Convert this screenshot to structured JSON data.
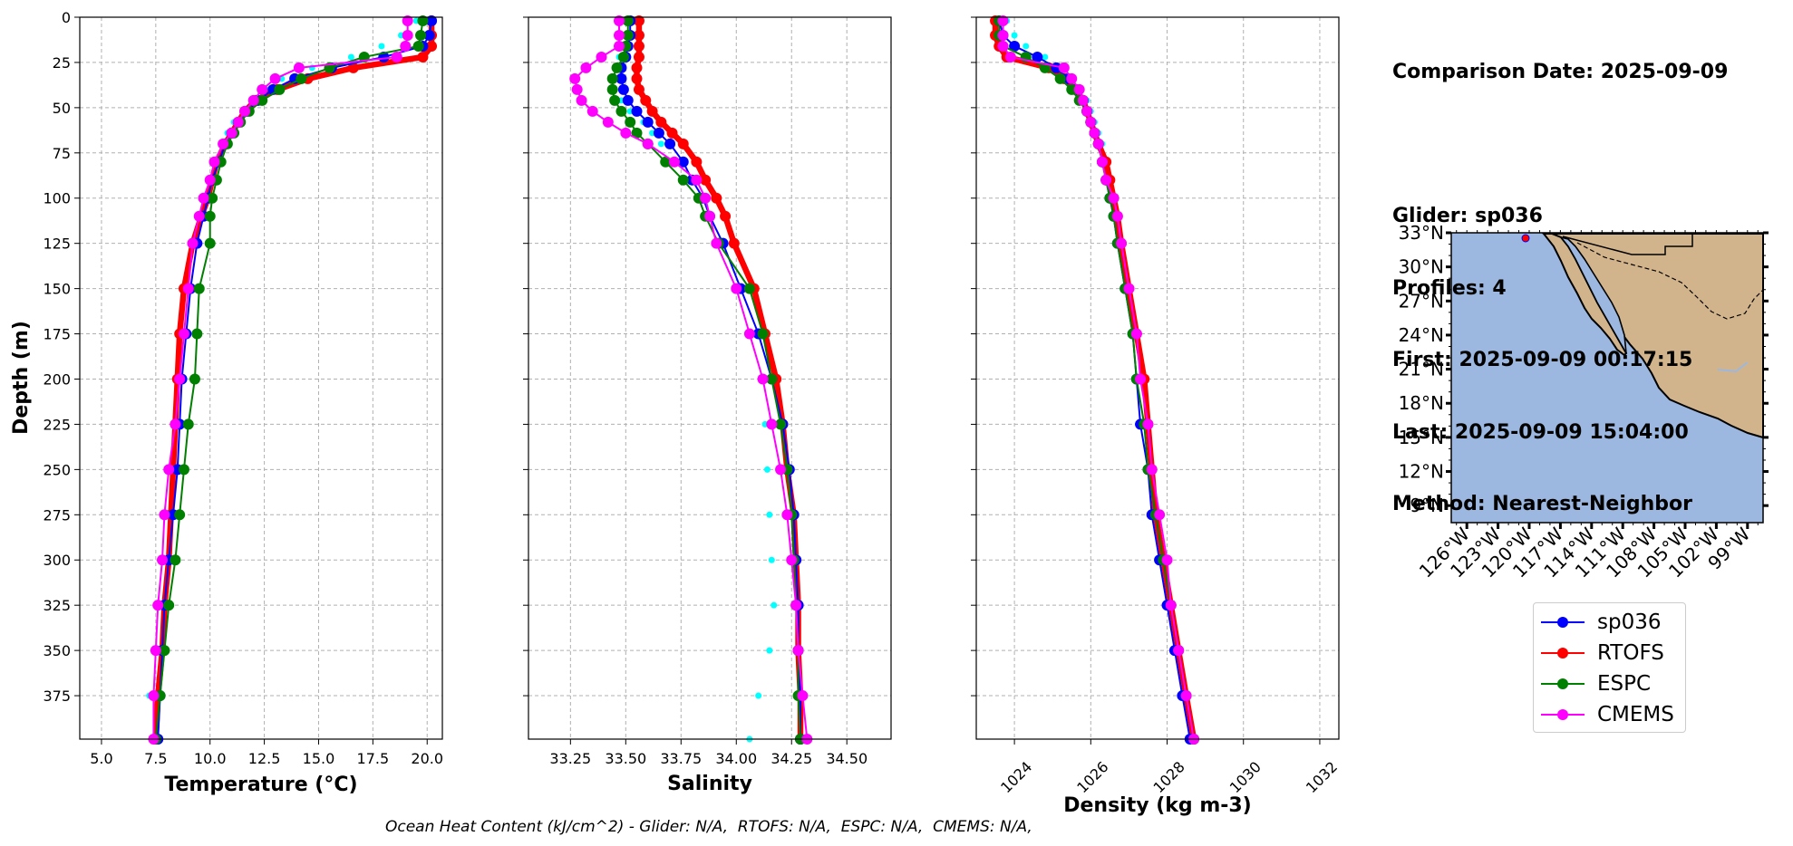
{
  "info": {
    "comparison_date": "Comparison Date: 2025-09-09",
    "glider": "Glider: sp036",
    "profiles": "Profiles: 4",
    "first": "First: 2025-09-09 00:17:15",
    "last": "Last: 2025-09-09 15:04:00",
    "method": "Method: Nearest-Neighbor"
  },
  "footer": "Ocean Heat Content (kJ/cm^2) - Glider: N/A,  RTOFS: N/A,  ESPC: N/A,  CMEMS: N/A,",
  "colors": {
    "sp036": "#0000ff",
    "RTOFS": "#ff0000",
    "ESPC": "#008000",
    "CMEMS": "#ff00ff",
    "raw": "#00ffff",
    "ocean": "#9cb7e0",
    "land": "#d2b48c"
  },
  "legend": [
    "sp036",
    "RTOFS",
    "ESPC",
    "CMEMS"
  ],
  "chart_data": [
    {
      "type": "line",
      "panel": "temperature",
      "xlabel": "Temperature (°C)",
      "ylabel": "Depth (m)",
      "xlim": [
        4,
        20.7
      ],
      "ylim": [
        399,
        0
      ],
      "xticks": [
        "5.0",
        "7.5",
        "10.0",
        "12.5",
        "15.0",
        "17.5",
        "20.0"
      ],
      "yticks": [
        "0",
        "25",
        "50",
        "75",
        "100",
        "125",
        "150",
        "175",
        "200",
        "225",
        "250",
        "275",
        "300",
        "325",
        "350",
        "375"
      ],
      "grid": true,
      "depth": [
        2,
        10,
        16,
        22,
        28,
        34,
        40,
        46,
        52,
        58,
        64,
        70,
        80,
        90,
        100,
        110,
        125,
        150,
        175,
        200,
        225,
        250,
        275,
        300,
        325,
        350,
        375,
        399
      ],
      "series": [
        {
          "name": "sp036",
          "values": [
            20.2,
            20.1,
            19.8,
            18.0,
            15.6,
            13.9,
            12.9,
            12.2,
            11.7,
            11.3,
            11.0,
            10.7,
            10.4,
            10.1,
            9.9,
            9.7,
            9.4,
            9.1,
            8.9,
            8.7,
            8.6,
            8.5,
            8.3,
            8.1,
            7.9,
            7.8,
            7.7,
            7.6
          ]
        },
        {
          "name": "RTOFS",
          "values": [
            20.2,
            20.2,
            20.2,
            19.8,
            16.6,
            14.5,
            13.1,
            12.1,
            11.6,
            11.3,
            11.0,
            10.7,
            10.3,
            10.1,
            9.9,
            9.6,
            9.2,
            8.8,
            8.6,
            8.5,
            8.4,
            8.3,
            8.2,
            8.1,
            7.9,
            7.8,
            7.6,
            7.5
          ]
        },
        {
          "name": "ESPC",
          "values": [
            19.8,
            19.7,
            19.6,
            17.1,
            15.5,
            14.2,
            13.2,
            12.4,
            11.8,
            11.4,
            11.1,
            10.8,
            10.5,
            10.3,
            10.1,
            10.0,
            10.0,
            9.5,
            9.4,
            9.3,
            9.0,
            8.8,
            8.6,
            8.4,
            8.1,
            7.9,
            7.7,
            7.5
          ]
        },
        {
          "name": "CMEMS",
          "values": [
            19.1,
            19.1,
            19.0,
            18.6,
            14.1,
            13.0,
            12.4,
            12.0,
            11.6,
            11.3,
            11.0,
            10.6,
            10.2,
            10.0,
            9.7,
            9.5,
            9.2,
            9.0,
            8.8,
            8.6,
            8.4,
            8.1,
            7.9,
            7.8,
            7.6,
            7.5,
            7.4,
            7.4
          ]
        },
        {
          "name": "glider raw",
          "values": [
            19.5,
            18.8,
            17.9,
            16.5,
            14.7,
            13.3,
            12.6,
            12.0,
            11.6,
            11.1,
            10.8,
            10.6,
            10.4,
            10.0,
            9.7,
            9.5,
            9.3,
            9.1,
            8.9,
            8.7,
            8.5,
            8.4,
            8.2,
            7.9,
            7.7,
            7.4,
            7.2,
            7.3
          ]
        }
      ]
    },
    {
      "type": "line",
      "panel": "salinity",
      "xlabel": "Salinity",
      "xlim": [
        33.06,
        34.7
      ],
      "ylim": [
        399,
        0
      ],
      "xticks": [
        "33.25",
        "33.50",
        "33.75",
        "34.00",
        "34.25",
        "34.50"
      ],
      "grid": true,
      "depth": [
        2,
        10,
        16,
        22,
        28,
        34,
        40,
        46,
        52,
        58,
        64,
        70,
        80,
        90,
        100,
        110,
        125,
        150,
        175,
        200,
        225,
        250,
        275,
        300,
        325,
        350,
        375,
        399
      ],
      "series": [
        {
          "name": "sp036",
          "values": [
            33.52,
            33.52,
            33.51,
            33.5,
            33.48,
            33.48,
            33.49,
            33.51,
            33.55,
            33.6,
            33.65,
            33.7,
            33.76,
            33.8,
            33.85,
            33.88,
            33.94,
            34.02,
            34.1,
            34.16,
            34.21,
            34.24,
            34.26,
            34.27,
            34.28,
            34.28,
            34.29,
            34.29
          ]
        },
        {
          "name": "RTOFS",
          "values": [
            33.56,
            33.56,
            33.56,
            33.56,
            33.55,
            33.55,
            33.56,
            33.59,
            33.62,
            33.66,
            33.71,
            33.76,
            33.82,
            33.86,
            33.91,
            33.95,
            33.99,
            34.08,
            34.13,
            34.18,
            34.21,
            34.23,
            34.26,
            34.27,
            34.28,
            34.28,
            34.29,
            34.29
          ]
        },
        {
          "name": "ESPC",
          "values": [
            33.51,
            33.51,
            33.5,
            33.49,
            33.46,
            33.44,
            33.44,
            33.45,
            33.48,
            33.52,
            33.55,
            33.6,
            33.68,
            33.76,
            33.83,
            33.86,
            33.92,
            34.06,
            34.12,
            34.16,
            34.2,
            34.23,
            34.25,
            34.26,
            34.27,
            34.28,
            34.28,
            34.29
          ]
        },
        {
          "name": "CMEMS",
          "values": [
            33.47,
            33.47,
            33.47,
            33.39,
            33.32,
            33.27,
            33.28,
            33.3,
            33.35,
            33.42,
            33.5,
            33.6,
            33.72,
            33.82,
            33.86,
            33.88,
            33.91,
            34.0,
            34.06,
            34.12,
            34.16,
            34.2,
            34.23,
            34.25,
            34.27,
            34.28,
            34.3,
            34.32
          ]
        },
        {
          "name": "glider raw",
          "values": [
            33.5,
            33.5,
            33.49,
            33.47,
            33.45,
            33.44,
            33.45,
            33.48,
            33.52,
            33.58,
            33.62,
            33.66,
            33.74,
            33.8,
            33.84,
            33.88,
            33.93,
            34.03,
            34.09,
            34.12,
            34.13,
            34.14,
            34.15,
            34.16,
            34.17,
            34.15,
            34.1,
            34.06
          ]
        }
      ]
    },
    {
      "type": "line",
      "panel": "density",
      "xlabel": "Density (kg m-3)",
      "xlim": [
        1023.0,
        1032.5
      ],
      "ylim": [
        399,
        0
      ],
      "xticks": [
        "1024",
        "1026",
        "1028",
        "1030",
        "1032"
      ],
      "grid": true,
      "depth": [
        2,
        10,
        16,
        22,
        28,
        34,
        40,
        46,
        52,
        58,
        64,
        70,
        80,
        90,
        100,
        110,
        125,
        150,
        175,
        200,
        225,
        250,
        275,
        300,
        325,
        350,
        375,
        399
      ],
      "series": [
        {
          "name": "sp036",
          "values": [
            1023.6,
            1023.7,
            1024.0,
            1024.6,
            1025.1,
            1025.4,
            1025.6,
            1025.8,
            1025.9,
            1026.0,
            1026.1,
            1026.2,
            1026.3,
            1026.4,
            1026.5,
            1026.6,
            1026.7,
            1026.9,
            1027.1,
            1027.2,
            1027.3,
            1027.5,
            1027.6,
            1027.8,
            1028.0,
            1028.2,
            1028.4,
            1028.6
          ]
        },
        {
          "name": "RTOFS",
          "values": [
            1023.5,
            1023.5,
            1023.6,
            1023.8,
            1024.9,
            1025.3,
            1025.6,
            1025.8,
            1025.9,
            1026.0,
            1026.1,
            1026.2,
            1026.4,
            1026.5,
            1026.6,
            1026.7,
            1026.8,
            1027.0,
            1027.2,
            1027.4,
            1027.5,
            1027.6,
            1027.7,
            1027.9,
            1028.1,
            1028.3,
            1028.5,
            1028.7
          ]
        },
        {
          "name": "ESPC",
          "values": [
            1023.6,
            1023.6,
            1023.7,
            1024.3,
            1024.8,
            1025.2,
            1025.5,
            1025.7,
            1025.9,
            1026.0,
            1026.1,
            1026.2,
            1026.3,
            1026.4,
            1026.5,
            1026.6,
            1026.7,
            1026.9,
            1027.1,
            1027.2,
            1027.4,
            1027.5,
            1027.7,
            1027.9,
            1028.1,
            1028.3,
            1028.5,
            1028.7
          ]
        },
        {
          "name": "CMEMS",
          "values": [
            1023.7,
            1023.7,
            1023.7,
            1023.9,
            1025.3,
            1025.5,
            1025.7,
            1025.8,
            1025.9,
            1026.0,
            1026.1,
            1026.2,
            1026.3,
            1026.4,
            1026.6,
            1026.7,
            1026.8,
            1027.0,
            1027.2,
            1027.3,
            1027.5,
            1027.6,
            1027.8,
            1028.0,
            1028.1,
            1028.3,
            1028.5,
            1028.7
          ]
        },
        {
          "name": "glider raw",
          "values": [
            1023.8,
            1024.0,
            1024.3,
            1024.8,
            1025.2,
            1025.5,
            1025.7,
            1025.9,
            1026.0,
            1026.1,
            1026.2,
            1026.3,
            1026.4,
            1026.5,
            1026.6,
            1026.7,
            1026.8,
            1027.0,
            1027.1,
            1027.3,
            1027.4,
            1027.5,
            1027.7,
            1027.9,
            1028.1,
            1028.3,
            1028.4,
            1028.6
          ]
        }
      ]
    },
    {
      "type": "map",
      "panel": "location",
      "lon_range": [
        -127.5,
        -97.5
      ],
      "lat_range": [
        7.5,
        33
      ],
      "lat_ticks": [
        "33°N",
        "30°N",
        "27°N",
        "24°N",
        "21°N",
        "18°N",
        "15°N",
        "12°N",
        "9°N"
      ],
      "lon_ticks": [
        "126°W",
        "123°W",
        "120°W",
        "117°W",
        "114°W",
        "111°W",
        "108°W",
        "105°W",
        "102°W",
        "99°W"
      ],
      "glider_position": {
        "lon": -120.5,
        "lat": 32.8
      }
    }
  ]
}
